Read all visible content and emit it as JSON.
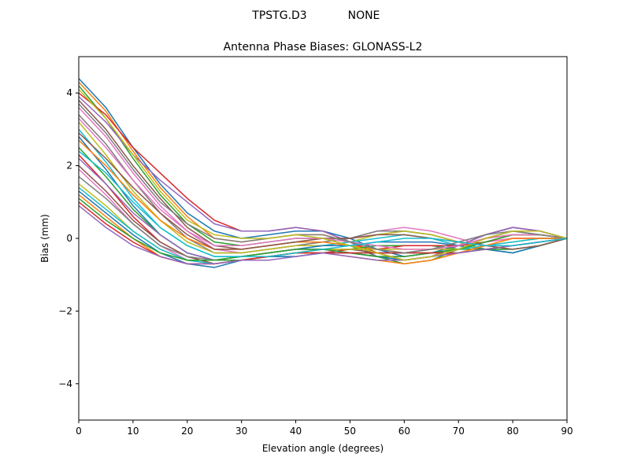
{
  "header": {
    "antenna": "TPSTG.D3",
    "radome": "NONE"
  },
  "chart_data": {
    "type": "line",
    "title": "Antenna Phase Biases: GLONASS-L2",
    "xlabel": "Elevation angle (degrees)",
    "ylabel": "Bias (mm)",
    "xlim": [
      0,
      90
    ],
    "ylim": [
      -5,
      5
    ],
    "xticks": [
      0,
      10,
      20,
      30,
      40,
      50,
      60,
      70,
      80,
      90
    ],
    "xtick_labels": [
      "0",
      "10",
      "20",
      "30",
      "40",
      "50",
      "60",
      "70",
      "80",
      "90"
    ],
    "yticks": [
      4,
      2,
      0,
      -2,
      -4
    ],
    "ytick_labels": [
      "4",
      "2",
      "0",
      "−2",
      "−4"
    ],
    "grid": false,
    "legend": "none",
    "x": [
      0,
      5,
      10,
      15,
      20,
      25,
      30,
      35,
      40,
      45,
      50,
      55,
      60,
      65,
      70,
      75,
      80,
      85,
      90
    ],
    "colors": [
      "#1f77b4",
      "#ff7f0e",
      "#2ca02c",
      "#d62728",
      "#9467bd",
      "#8c564b",
      "#e377c2",
      "#7f7f7f",
      "#bcbd22",
      "#17becf"
    ],
    "series": [
      {
        "values": [
          4.4,
          3.6,
          2.5,
          1.5,
          0.7,
          0.2,
          0.0,
          0.1,
          0.2,
          0.2,
          0.0,
          -0.3,
          -0.5,
          -0.4,
          -0.2,
          0.1,
          0.3,
          0.2,
          0.0
        ]
      },
      {
        "values": [
          4.3,
          3.5,
          2.4,
          1.4,
          0.6,
          0.0,
          -0.1,
          0.0,
          0.1,
          0.1,
          -0.1,
          -0.4,
          -0.6,
          -0.5,
          -0.3,
          0.0,
          0.2,
          0.1,
          0.0
        ]
      },
      {
        "values": [
          4.2,
          3.3,
          2.2,
          1.2,
          0.4,
          -0.1,
          -0.2,
          -0.1,
          0.0,
          0.0,
          -0.2,
          -0.5,
          -0.7,
          -0.6,
          -0.3,
          0.0,
          0.2,
          0.1,
          0.0
        ]
      },
      {
        "values": [
          4.0,
          3.4,
          2.5,
          1.8,
          1.1,
          0.5,
          0.2,
          0.2,
          0.3,
          0.2,
          -0.1,
          -0.4,
          -0.6,
          -0.5,
          -0.2,
          0.1,
          0.3,
          0.2,
          0.0
        ]
      },
      {
        "values": [
          3.9,
          3.2,
          2.3,
          1.6,
          1.0,
          0.4,
          0.2,
          0.2,
          0.3,
          0.2,
          -0.1,
          -0.5,
          -0.6,
          -0.5,
          -0.2,
          0.1,
          0.3,
          0.2,
          0.0
        ]
      },
      {
        "values": [
          3.8,
          3.0,
          2.0,
          1.1,
          0.3,
          -0.2,
          -0.3,
          -0.2,
          -0.1,
          0.0,
          0.0,
          0.1,
          0.2,
          0.1,
          -0.1,
          -0.2,
          -0.2,
          -0.1,
          0.0
        ]
      },
      {
        "values": [
          3.6,
          2.8,
          1.8,
          0.9,
          0.2,
          -0.3,
          -0.4,
          -0.3,
          -0.2,
          -0.1,
          0.0,
          0.2,
          0.3,
          0.2,
          0.0,
          -0.2,
          -0.2,
          -0.1,
          0.0
        ]
      },
      {
        "values": [
          3.4,
          2.6,
          1.6,
          0.7,
          0.0,
          -0.4,
          -0.4,
          -0.3,
          -0.2,
          -0.1,
          0.0,
          0.2,
          0.2,
          0.1,
          -0.1,
          -0.3,
          -0.3,
          -0.2,
          0.0
        ]
      },
      {
        "values": [
          3.2,
          2.3,
          1.3,
          0.5,
          -0.1,
          -0.4,
          -0.4,
          -0.3,
          -0.2,
          -0.2,
          -0.1,
          0.1,
          0.2,
          0.1,
          -0.1,
          -0.3,
          -0.4,
          -0.2,
          0.0
        ]
      },
      {
        "values": [
          3.0,
          2.1,
          1.1,
          0.3,
          -0.2,
          -0.5,
          -0.5,
          -0.4,
          -0.3,
          -0.2,
          -0.1,
          0.0,
          0.1,
          0.0,
          -0.2,
          -0.3,
          -0.4,
          -0.2,
          0.0
        ]
      },
      {
        "values": [
          2.8,
          1.9,
          0.9,
          0.1,
          -0.4,
          -0.6,
          -0.5,
          -0.4,
          -0.3,
          -0.2,
          -0.2,
          -0.1,
          -0.1,
          -0.1,
          -0.2,
          -0.3,
          -0.4,
          -0.2,
          0.0
        ]
      },
      {
        "values": [
          2.7,
          2.0,
          1.2,
          0.5,
          0.0,
          -0.3,
          -0.3,
          -0.2,
          -0.1,
          -0.1,
          -0.2,
          -0.3,
          -0.4,
          -0.3,
          -0.2,
          0.0,
          0.1,
          0.1,
          0.0
        ]
      },
      {
        "values": [
          2.5,
          1.7,
          0.8,
          0.1,
          -0.4,
          -0.6,
          -0.6,
          -0.5,
          -0.4,
          -0.3,
          -0.3,
          -0.2,
          -0.2,
          -0.2,
          -0.3,
          -0.3,
          -0.3,
          -0.2,
          0.0
        ]
      },
      {
        "values": [
          2.3,
          1.5,
          0.6,
          -0.1,
          -0.5,
          -0.7,
          -0.6,
          -0.5,
          -0.4,
          -0.4,
          -0.3,
          -0.3,
          -0.2,
          -0.2,
          -0.2,
          -0.1,
          0.0,
          0.0,
          0.0
        ]
      },
      {
        "values": [
          2.2,
          1.5,
          0.7,
          0.1,
          -0.4,
          -0.6,
          -0.5,
          -0.4,
          -0.3,
          -0.3,
          -0.4,
          -0.5,
          -0.5,
          -0.4,
          -0.3,
          -0.1,
          0.1,
          0.1,
          0.0
        ]
      },
      {
        "values": [
          2.0,
          1.3,
          0.5,
          -0.1,
          -0.5,
          -0.7,
          -0.6,
          -0.5,
          -0.4,
          -0.3,
          -0.3,
          -0.4,
          -0.4,
          -0.3,
          -0.2,
          0.0,
          0.1,
          0.1,
          0.0
        ]
      },
      {
        "values": [
          1.9,
          1.2,
          0.4,
          -0.2,
          -0.6,
          -0.7,
          -0.6,
          -0.5,
          -0.4,
          -0.3,
          -0.4,
          -0.5,
          -0.6,
          -0.5,
          -0.3,
          -0.1,
          0.0,
          0.0,
          0.0
        ]
      },
      {
        "values": [
          1.7,
          1.1,
          0.4,
          -0.2,
          -0.5,
          -0.6,
          -0.5,
          -0.4,
          -0.3,
          -0.3,
          -0.4,
          -0.5,
          -0.6,
          -0.5,
          -0.3,
          -0.1,
          0.1,
          0.1,
          0.0
        ]
      },
      {
        "values": [
          1.5,
          0.9,
          0.2,
          -0.3,
          -0.6,
          -0.7,
          -0.6,
          -0.5,
          -0.4,
          -0.3,
          -0.3,
          -0.3,
          -0.3,
          -0.3,
          -0.3,
          -0.2,
          -0.1,
          0.0,
          0.0
        ]
      },
      {
        "values": [
          1.4,
          0.8,
          0.2,
          -0.3,
          -0.6,
          -0.7,
          -0.6,
          -0.5,
          -0.5,
          -0.4,
          -0.4,
          -0.4,
          -0.4,
          -0.4,
          -0.3,
          -0.2,
          -0.1,
          0.0,
          0.0
        ]
      },
      {
        "values": [
          1.3,
          0.7,
          0.1,
          -0.4,
          -0.7,
          -0.8,
          -0.6,
          -0.5,
          -0.5,
          -0.4,
          -0.4,
          -0.5,
          -0.6,
          -0.5,
          -0.4,
          -0.3,
          -0.2,
          -0.1,
          0.0
        ]
      },
      {
        "values": [
          1.2,
          0.6,
          0.0,
          -0.5,
          -0.7,
          -0.7,
          -0.6,
          -0.5,
          -0.4,
          -0.4,
          -0.5,
          -0.6,
          -0.7,
          -0.6,
          -0.4,
          -0.2,
          0.0,
          0.0,
          0.0
        ]
      },
      {
        "values": [
          1.1,
          0.5,
          0.0,
          -0.4,
          -0.6,
          -0.6,
          -0.5,
          -0.4,
          -0.3,
          -0.3,
          -0.4,
          -0.5,
          -0.5,
          -0.4,
          -0.3,
          -0.1,
          0.1,
          0.1,
          0.0
        ]
      },
      {
        "values": [
          1.0,
          0.4,
          -0.1,
          -0.5,
          -0.7,
          -0.7,
          -0.6,
          -0.5,
          -0.4,
          -0.4,
          -0.4,
          -0.4,
          -0.4,
          -0.4,
          -0.4,
          -0.3,
          -0.2,
          -0.1,
          0.0
        ]
      },
      {
        "values": [
          0.9,
          0.3,
          -0.2,
          -0.5,
          -0.7,
          -0.7,
          -0.6,
          -0.6,
          -0.5,
          -0.4,
          -0.5,
          -0.6,
          -0.6,
          -0.5,
          -0.4,
          -0.3,
          -0.2,
          -0.1,
          0.0
        ]
      },
      {
        "values": [
          2.9,
          2.2,
          1.4,
          0.7,
          0.1,
          -0.3,
          -0.3,
          -0.2,
          -0.1,
          0.0,
          0.0,
          0.1,
          0.1,
          0.0,
          -0.1,
          -0.2,
          -0.3,
          -0.2,
          0.0
        ]
      },
      {
        "values": [
          3.3,
          2.5,
          1.6,
          0.8,
          0.2,
          -0.2,
          -0.2,
          -0.1,
          0.0,
          0.0,
          -0.1,
          -0.2,
          -0.3,
          -0.3,
          -0.2,
          0.0,
          0.1,
          0.1,
          0.0
        ]
      },
      {
        "values": [
          3.7,
          2.9,
          1.9,
          1.0,
          0.4,
          0.0,
          -0.1,
          0.0,
          0.1,
          0.1,
          -0.1,
          -0.3,
          -0.4,
          -0.3,
          -0.1,
          0.1,
          0.2,
          0.1,
          0.0
        ]
      },
      {
        "values": [
          4.1,
          3.3,
          2.3,
          1.3,
          0.5,
          0.1,
          0.0,
          0.0,
          0.1,
          0.0,
          -0.2,
          -0.4,
          -0.6,
          -0.5,
          -0.3,
          0.0,
          0.2,
          0.2,
          0.0
        ]
      },
      {
        "values": [
          2.4,
          1.8,
          1.0,
          0.3,
          -0.2,
          -0.5,
          -0.5,
          -0.5,
          -0.4,
          -0.3,
          -0.2,
          -0.1,
          0.0,
          0.0,
          -0.1,
          -0.2,
          -0.2,
          -0.1,
          0.0
        ]
      }
    ]
  }
}
